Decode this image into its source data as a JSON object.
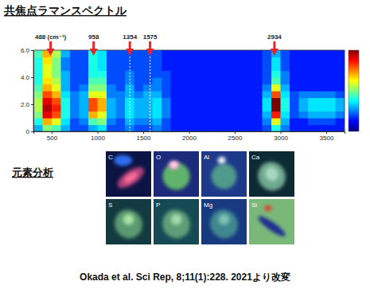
{
  "chart_data": {
    "type": "heatmap",
    "title": "共焦点ラマンスペクトル",
    "xlim": [
      300,
      3700
    ],
    "ylim": [
      0,
      6
    ],
    "xticks": [
      500,
      1000,
      1500,
      2000,
      2500,
      3000,
      3500
    ],
    "yticks": [
      0,
      {
        "value": 2,
        "label": "2.0"
      },
      {
        "value": 4,
        "label": "4.0"
      },
      {
        "value": 6,
        "label": "6.0"
      }
    ],
    "x_bins": [
      300,
      400,
      500,
      600,
      700,
      800,
      900,
      1000,
      1100,
      1200,
      1300,
      1400,
      1500,
      1600,
      1700,
      1800,
      1900,
      2000,
      2100,
      2200,
      2300,
      2400,
      2500,
      2600,
      2700,
      2800,
      2900,
      3000,
      3100,
      3200,
      3300,
      3400,
      3500,
      3600,
      3700
    ],
    "y_bins": [
      0,
      0.5,
      1,
      1.5,
      2,
      2.5,
      3,
      3.5,
      4,
      4.5,
      5,
      5.5,
      6
    ],
    "z": [
      [
        3,
        5,
        4.5,
        3,
        2,
        2,
        3,
        3.5,
        2,
        2,
        2.5,
        2,
        2,
        2.5,
        2,
        1.5,
        1.5,
        1.5,
        1.5,
        1.5,
        1.5,
        1.5,
        1.5,
        1.5,
        1.5,
        2,
        4,
        2.5,
        1.5,
        1.5,
        1.5,
        1.5,
        1.5,
        1.5
      ],
      [
        4,
        7,
        6,
        3.5,
        2,
        2.5,
        4.5,
        5,
        2.5,
        2,
        3,
        2.5,
        2.5,
        3,
        2,
        1.5,
        1.5,
        1.5,
        1.5,
        1.5,
        1.5,
        1.5,
        1.5,
        1.5,
        1.5,
        2.5,
        6,
        3,
        1.5,
        1.5,
        2,
        2,
        2,
        1.5
      ],
      [
        5,
        9,
        8,
        4,
        2.5,
        3,
        7,
        6,
        3,
        2.5,
        3.5,
        3,
        3,
        3.5,
        2.5,
        1.5,
        1.5,
        1.5,
        1.5,
        1.5,
        1.5,
        1.5,
        1.5,
        1.5,
        1.5,
        3,
        8.5,
        3.5,
        2,
        2.5,
        3,
        3,
        3,
        2.5
      ],
      [
        5.5,
        9.5,
        8.5,
        4,
        2.5,
        3,
        8,
        7,
        3,
        2.5,
        3.5,
        3,
        3,
        3.5,
        2.5,
        1.5,
        1.5,
        1.5,
        1.5,
        1.5,
        1.5,
        1.5,
        1.5,
        1.5,
        1.5,
        3.5,
        10,
        4,
        2,
        3,
        3.5,
        3.5,
        3.5,
        3
      ],
      [
        5.5,
        9,
        8,
        4,
        2.5,
        3,
        8,
        7,
        3,
        2.5,
        3.5,
        3,
        3,
        3.5,
        2.5,
        1.5,
        1.5,
        1.5,
        1.5,
        1.5,
        1.5,
        1.5,
        1.5,
        1.5,
        1.5,
        3.5,
        10,
        4,
        2,
        3,
        3.5,
        3.5,
        3.5,
        3
      ],
      [
        5,
        8,
        7,
        3.5,
        2.5,
        3,
        6,
        6,
        2.5,
        2.5,
        3,
        2.5,
        3,
        3,
        2,
        1.5,
        1.5,
        1.5,
        1.5,
        1.5,
        1.5,
        1.5,
        1.5,
        1.5,
        1.5,
        3,
        8,
        3.5,
        2,
        2.5,
        2.5,
        2.5,
        2.5,
        2
      ],
      [
        4.5,
        7,
        6,
        3,
        2,
        2.5,
        5,
        5,
        2.5,
        2,
        3,
        2,
        2.5,
        2.5,
        2,
        1.5,
        1.5,
        1.5,
        1.5,
        1.5,
        1.5,
        1.5,
        1.5,
        1.5,
        1.5,
        2.5,
        6,
        3,
        1.5,
        1.5,
        1.5,
        1.5,
        1.5,
        1.5
      ],
      [
        4,
        6.5,
        5.5,
        3,
        2,
        2,
        4.5,
        4.5,
        2,
        2,
        2.5,
        2,
        2,
        2.5,
        2,
        1.5,
        1.5,
        1.5,
        1.5,
        1.5,
        1.5,
        1.5,
        1.5,
        1.5,
        1.5,
        2,
        4.5,
        2.5,
        1.5,
        1.5,
        1.5,
        1.5,
        1.5,
        1.5
      ],
      [
        4,
        6,
        5,
        3,
        2,
        2,
        4,
        4,
        2,
        2,
        2.5,
        2,
        2,
        2,
        2,
        1.5,
        1.5,
        1.5,
        1.5,
        1.5,
        1.5,
        1.5,
        1.5,
        1.5,
        1.5,
        2,
        4,
        2.5,
        1.5,
        1.5,
        1.5,
        1.5,
        1.5,
        1.5
      ],
      [
        4,
        6,
        5,
        2.5,
        2,
        2,
        4,
        3.5,
        2,
        2,
        2,
        2,
        2,
        2,
        1.5,
        1.5,
        1.5,
        1.5,
        1.5,
        1.5,
        1.5,
        1.5,
        1.5,
        1.5,
        1.5,
        2,
        3.5,
        2,
        1.5,
        1.5,
        1.5,
        1.5,
        1.5,
        1.5
      ],
      [
        4,
        6.5,
        5,
        2.5,
        2,
        2,
        4,
        3.5,
        2,
        2,
        2,
        2,
        2,
        2,
        1.5,
        1.5,
        1.5,
        1.5,
        1.5,
        1.5,
        1.5,
        1.5,
        1.5,
        1.5,
        1.5,
        2,
        3.5,
        2,
        1.5,
        1.5,
        1.5,
        1.5,
        1.5,
        1.5
      ],
      [
        4.5,
        7,
        5.5,
        3,
        2,
        2,
        4,
        3.5,
        2,
        2,
        2,
        2,
        2,
        2,
        1.5,
        1.5,
        1.5,
        1.5,
        1.5,
        1.5,
        1.5,
        1.5,
        1.5,
        1.5,
        1.5,
        2,
        3,
        2,
        1.5,
        1.5,
        1.5,
        1.5,
        1.5,
        1.5
      ]
    ],
    "colorbar": {
      "range": [
        0,
        10
      ]
    },
    "annotations": [
      {
        "x": 488,
        "label": "488 (cm⁻¹)"
      },
      {
        "x": 958,
        "label": "958"
      },
      {
        "x": 1354,
        "label": "1354",
        "line_style": "dashed"
      },
      {
        "x": 1575,
        "label": "1575",
        "line_style": "dashed"
      },
      {
        "x": 2934,
        "label": "2934"
      }
    ]
  },
  "element_analysis": {
    "title": "元素分析",
    "panels": [
      {
        "label": "C"
      },
      {
        "label": "O"
      },
      {
        "label": "Al"
      },
      {
        "label": "Ca"
      },
      {
        "label": "S"
      },
      {
        "label": "P"
      },
      {
        "label": "Mg"
      },
      {
        "label": "Si"
      }
    ]
  },
  "footer": "Okada et al. Sci Rep, 8;11(1):228. 2021より改変"
}
